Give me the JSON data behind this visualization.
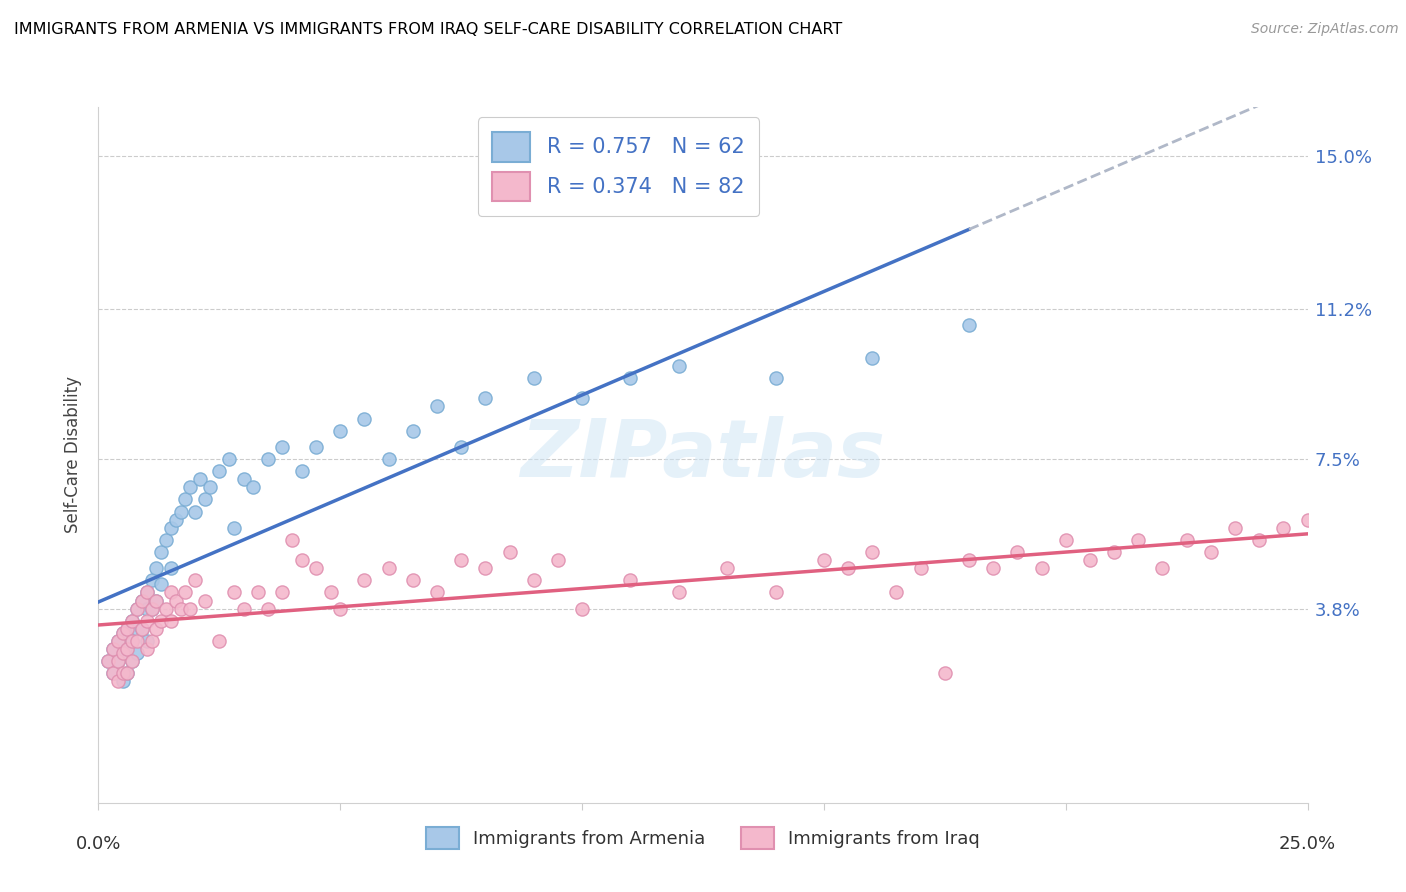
{
  "title": "IMMIGRANTS FROM ARMENIA VS IMMIGRANTS FROM IRAQ SELF-CARE DISABILITY CORRELATION CHART",
  "source": "Source: ZipAtlas.com",
  "ylabel": "Self-Care Disability",
  "ytick_labels": [
    "3.8%",
    "7.5%",
    "11.2%",
    "15.0%"
  ],
  "ytick_values": [
    0.038,
    0.075,
    0.112,
    0.15
  ],
  "xlim": [
    0.0,
    0.25
  ],
  "ylim": [
    -0.01,
    0.162
  ],
  "legend_labels": [
    "Immigrants from Armenia",
    "Immigrants from Iraq"
  ],
  "legend_R": [
    0.757,
    0.374
  ],
  "legend_N": [
    62,
    82
  ],
  "color_armenia": "#a8c8e8",
  "color_iraq": "#f4b8cc",
  "line_color_armenia": "#4472c4",
  "line_color_iraq": "#e06080",
  "line_color_extrapolate": "#b8b8b8",
  "watermark": "ZIPatlas",
  "armenia_x": [
    0.002,
    0.003,
    0.003,
    0.004,
    0.004,
    0.005,
    0.005,
    0.005,
    0.006,
    0.006,
    0.006,
    0.007,
    0.007,
    0.007,
    0.008,
    0.008,
    0.008,
    0.009,
    0.009,
    0.01,
    0.01,
    0.01,
    0.011,
    0.011,
    0.012,
    0.012,
    0.013,
    0.013,
    0.014,
    0.015,
    0.015,
    0.016,
    0.017,
    0.018,
    0.019,
    0.02,
    0.021,
    0.022,
    0.023,
    0.025,
    0.027,
    0.028,
    0.03,
    0.032,
    0.035,
    0.038,
    0.042,
    0.045,
    0.05,
    0.055,
    0.06,
    0.065,
    0.07,
    0.075,
    0.08,
    0.09,
    0.1,
    0.11,
    0.12,
    0.14,
    0.16,
    0.18
  ],
  "armenia_y": [
    0.025,
    0.028,
    0.022,
    0.03,
    0.025,
    0.032,
    0.027,
    0.02,
    0.033,
    0.028,
    0.022,
    0.035,
    0.03,
    0.025,
    0.038,
    0.033,
    0.027,
    0.04,
    0.033,
    0.042,
    0.038,
    0.03,
    0.045,
    0.038,
    0.048,
    0.04,
    0.052,
    0.044,
    0.055,
    0.058,
    0.048,
    0.06,
    0.062,
    0.065,
    0.068,
    0.062,
    0.07,
    0.065,
    0.068,
    0.072,
    0.075,
    0.058,
    0.07,
    0.068,
    0.075,
    0.078,
    0.072,
    0.078,
    0.082,
    0.085,
    0.075,
    0.082,
    0.088,
    0.078,
    0.09,
    0.095,
    0.09,
    0.095,
    0.098,
    0.095,
    0.1,
    0.108
  ],
  "iraq_x": [
    0.002,
    0.003,
    0.003,
    0.004,
    0.004,
    0.004,
    0.005,
    0.005,
    0.005,
    0.006,
    0.006,
    0.006,
    0.007,
    0.007,
    0.007,
    0.008,
    0.008,
    0.009,
    0.009,
    0.01,
    0.01,
    0.01,
    0.011,
    0.011,
    0.012,
    0.012,
    0.013,
    0.014,
    0.015,
    0.015,
    0.016,
    0.017,
    0.018,
    0.019,
    0.02,
    0.022,
    0.025,
    0.028,
    0.03,
    0.033,
    0.035,
    0.038,
    0.04,
    0.042,
    0.045,
    0.048,
    0.05,
    0.055,
    0.06,
    0.065,
    0.07,
    0.075,
    0.08,
    0.085,
    0.09,
    0.095,
    0.1,
    0.11,
    0.12,
    0.13,
    0.14,
    0.15,
    0.155,
    0.16,
    0.165,
    0.17,
    0.175,
    0.18,
    0.185,
    0.19,
    0.195,
    0.2,
    0.205,
    0.21,
    0.215,
    0.22,
    0.225,
    0.23,
    0.235,
    0.24,
    0.245,
    0.25
  ],
  "iraq_y": [
    0.025,
    0.028,
    0.022,
    0.03,
    0.025,
    0.02,
    0.032,
    0.027,
    0.022,
    0.033,
    0.028,
    0.022,
    0.035,
    0.03,
    0.025,
    0.038,
    0.03,
    0.04,
    0.033,
    0.042,
    0.035,
    0.028,
    0.038,
    0.03,
    0.04,
    0.033,
    0.035,
    0.038,
    0.042,
    0.035,
    0.04,
    0.038,
    0.042,
    0.038,
    0.045,
    0.04,
    0.03,
    0.042,
    0.038,
    0.042,
    0.038,
    0.042,
    0.055,
    0.05,
    0.048,
    0.042,
    0.038,
    0.045,
    0.048,
    0.045,
    0.042,
    0.05,
    0.048,
    0.052,
    0.045,
    0.05,
    0.038,
    0.045,
    0.042,
    0.048,
    0.042,
    0.05,
    0.048,
    0.052,
    0.042,
    0.048,
    0.022,
    0.05,
    0.048,
    0.052,
    0.048,
    0.055,
    0.05,
    0.052,
    0.055,
    0.048,
    0.055,
    0.052,
    0.058,
    0.055,
    0.058,
    0.06
  ]
}
